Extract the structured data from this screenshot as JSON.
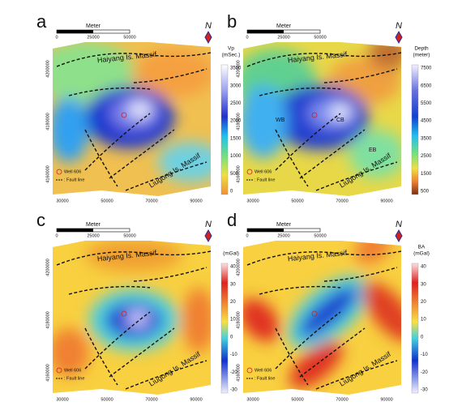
{
  "panels": [
    {
      "label": "a",
      "scale_bar": {
        "title": "Meter",
        "ticks": [
          "0",
          "25000",
          "50000"
        ]
      },
      "north": "N",
      "colorbar": {
        "title": [
          "Vp",
          "(mSec.)"
        ],
        "ticks": [
          3500,
          3000,
          2500,
          2000,
          1500,
          1000,
          500,
          0
        ]
      },
      "annotations": [
        "Haiyang Is. Massif",
        "Liugong Is. Massif"
      ],
      "legend": [
        "Well 606",
        ": Fault line"
      ],
      "x_ticks": [
        "30000",
        "50000",
        "70000",
        "90000"
      ],
      "y_ticks": [
        "4200000",
        "4180000",
        "4160000"
      ]
    },
    {
      "label": "b",
      "scale_bar": {
        "title": "Meter",
        "ticks": [
          "0",
          "25000",
          "50000"
        ]
      },
      "north": "N",
      "colorbar": {
        "title": [
          "Depth",
          "(meter)"
        ],
        "ticks": [
          7500,
          6500,
          5500,
          4500,
          3500,
          2500,
          1500,
          500
        ]
      },
      "annotations": [
        "Haiyang Is. Massif",
        "Liugong Is. Massif"
      ],
      "basins": [
        "WB",
        "CB",
        "EB"
      ],
      "legend": [
        "Well 606",
        ": Fault line"
      ],
      "x_ticks": [
        "30000",
        "50000",
        "70000",
        "90000"
      ],
      "y_ticks": [
        "4200000",
        "4180000",
        "4160000"
      ]
    },
    {
      "label": "c",
      "scale_bar": {
        "title": "Meter",
        "ticks": [
          "0",
          "25000",
          "50000"
        ]
      },
      "north": "N",
      "colorbar": {
        "title": [
          "(mGal)"
        ],
        "ticks": [
          40,
          30,
          20,
          10,
          0,
          -10,
          -20,
          -30
        ]
      },
      "annotations": [
        "Haiyang Is. Massif",
        "Liugong Is. Massif"
      ],
      "legend": [
        "Well 606",
        ": Fault line"
      ],
      "x_ticks": [
        "30000",
        "50000",
        "70000",
        "90000"
      ],
      "y_ticks": [
        "4200000",
        "4180000",
        "4160000"
      ]
    },
    {
      "label": "d",
      "scale_bar": {
        "title": "Meter",
        "ticks": [
          "0",
          "25000",
          "50000"
        ]
      },
      "north": "N",
      "colorbar": {
        "title": [
          "BA",
          "(mGal)"
        ],
        "ticks": [
          40,
          30,
          20,
          10,
          0,
          -10,
          -20,
          -30
        ]
      },
      "annotations": [
        "Haiyang Is. Massif",
        "Liugong Is. Massif"
      ],
      "legend": [
        "Well 606",
        ": Fault line"
      ],
      "x_ticks": [
        "30000",
        "50000",
        "70000",
        "90000"
      ],
      "y_ticks": [
        "4200000",
        "4180000",
        "4160000"
      ]
    }
  ]
}
